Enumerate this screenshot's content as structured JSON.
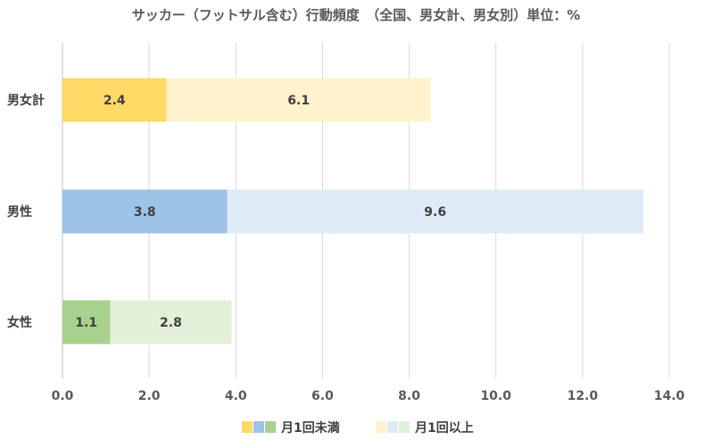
{
  "chart_data": {
    "type": "bar",
    "orientation": "horizontal",
    "stacked": true,
    "title": "サッカー（フットサル含む）行動頻度　（全国、男女計、男女別）単位：%",
    "categories": [
      "男女計",
      "男性",
      "女性"
    ],
    "series": [
      {
        "name": "月1回未満",
        "values": [
          2.4,
          3.8,
          1.1
        ],
        "labels": [
          "2.4",
          "3.8",
          "1.1"
        ],
        "colors": [
          "#ffd966",
          "#9dc3e6",
          "#a9d18e"
        ]
      },
      {
        "name": "月1回以上",
        "values": [
          6.1,
          9.6,
          2.8
        ],
        "labels": [
          "6.1",
          "9.6",
          "2.8"
        ],
        "colors": [
          "#fff2cc",
          "#deebf7",
          "#e2f0d9"
        ]
      }
    ],
    "xlim": [
      0,
      14
    ],
    "xticks": [
      "0.0",
      "2.0",
      "4.0",
      "6.0",
      "8.0",
      "10.0",
      "12.0",
      "14.0"
    ],
    "grid": true,
    "legend_position": "bottom"
  }
}
